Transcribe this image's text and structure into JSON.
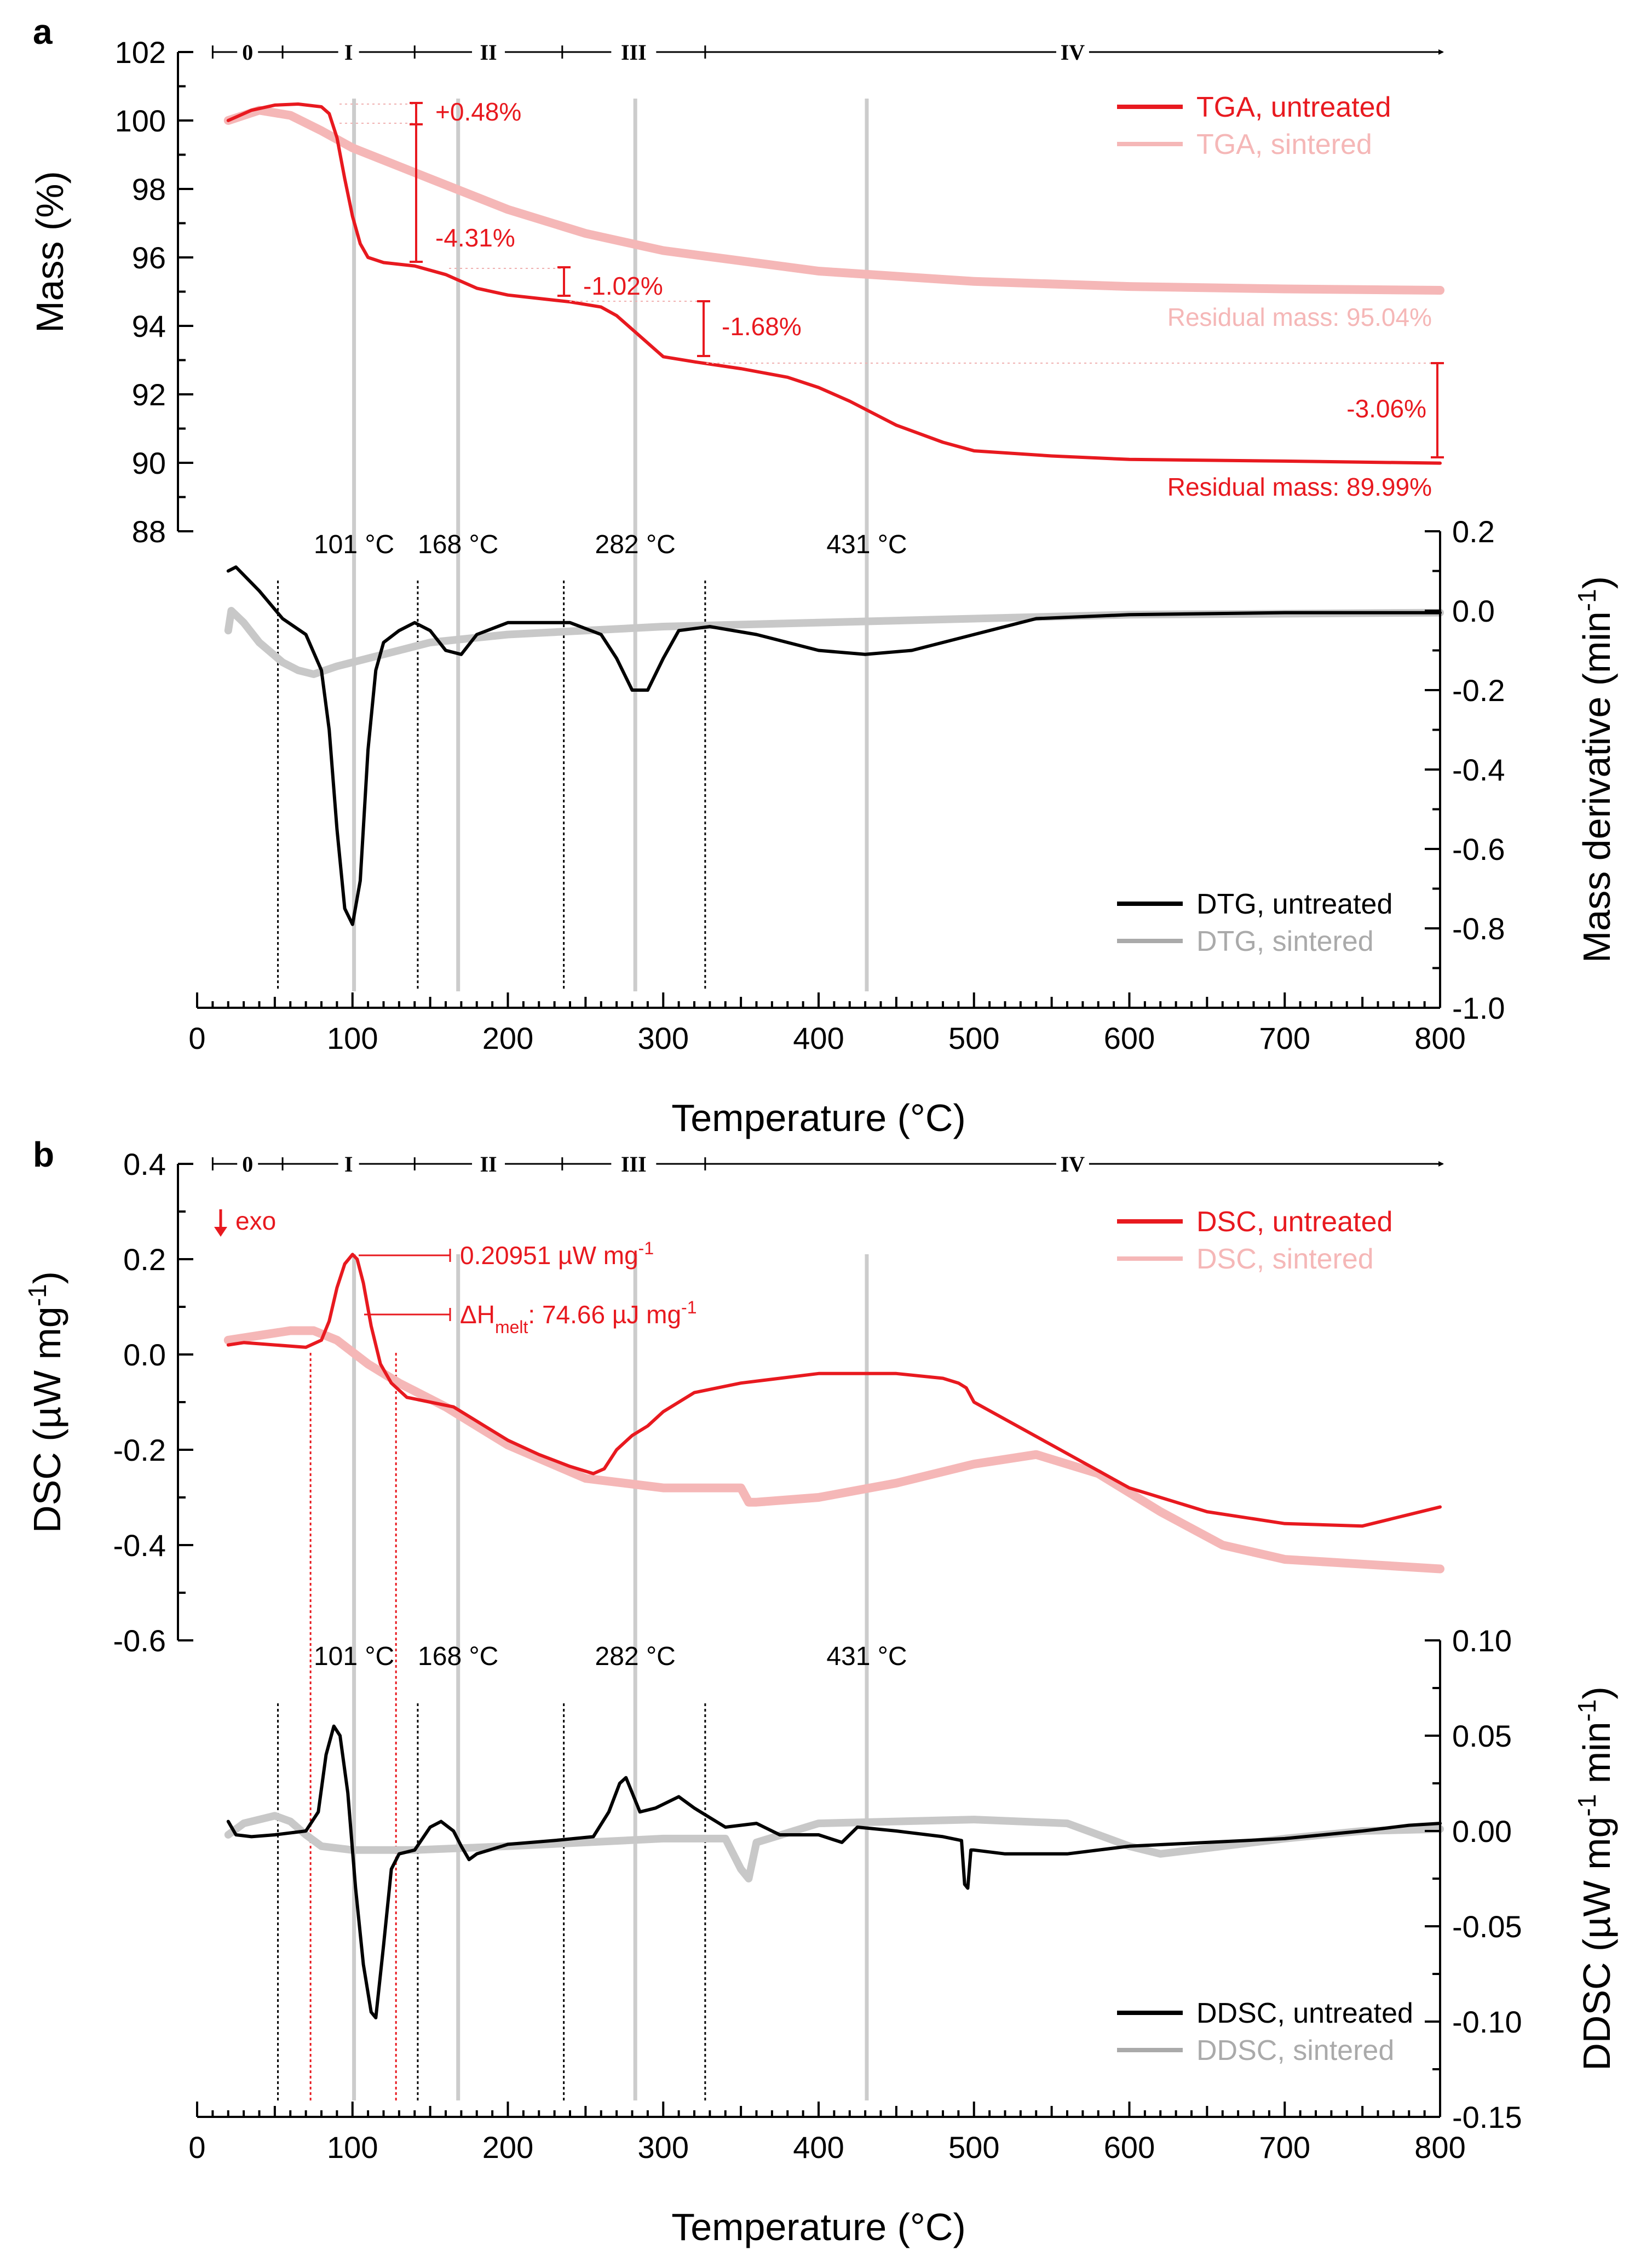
{
  "colors": {
    "untreated_red": "#e8191f",
    "sintered_pink": "#f5b7b7",
    "untreated_black": "#000000",
    "sintered_gray": "#c8c8c8",
    "guide_gray": "#cccccc"
  },
  "stages": [
    "0",
    "I",
    "II",
    "III",
    "IV"
  ],
  "stage_bounds": [
    10,
    55,
    140,
    235,
    327,
    800
  ],
  "guide_temps": [
    101,
    168,
    282,
    431
  ],
  "guide_labels": [
    "101 °C",
    "168 °C",
    "282 °C",
    "431 °C"
  ],
  "panel_a": {
    "label": "a",
    "tga_axis": {
      "ylabel": "Mass (%)",
      "ylim": [
        88,
        102
      ],
      "ticks": [
        "88",
        "90",
        "92",
        "94",
        "96",
        "98",
        "100",
        "102"
      ]
    },
    "dtg_axis": {
      "ylabel_main": "Mass derivative (min",
      "ylabel_sup": "-1",
      "ylabel_end": ")",
      "ylim": [
        -1.0,
        0.2
      ],
      "ticks": [
        "-1.0",
        "-0.8",
        "-0.6",
        "-0.4",
        "-0.2",
        "0.0",
        "0.2"
      ]
    },
    "xaxis": {
      "xlabel": "Temperature (°C)",
      "xlim": [
        0,
        800
      ],
      "ticks": [
        "0",
        "100",
        "200",
        "300",
        "400",
        "500",
        "600",
        "700",
        "800"
      ]
    },
    "legend_top": [
      "TGA, untreated",
      "TGA, sintered"
    ],
    "legend_bottom": [
      "DTG, untreated",
      "DTG, sintered"
    ],
    "annotations": {
      "step0": "+0.48%",
      "step1": "-4.31%",
      "step2": "-1.02%",
      "step3": "-1.68%",
      "step4": "-3.06%",
      "residual_sintered": "Residual mass: 95.04%",
      "residual_untreated": "Residual mass: 89.99%"
    },
    "dashed_temps": [
      52,
      142,
      236,
      327
    ]
  },
  "panel_b": {
    "label": "b",
    "dsc_axis": {
      "ylabel_main": "DSC (µW mg",
      "ylabel_sup": "-1",
      "ylabel_end": ")",
      "ylim": [
        -0.6,
        0.4
      ],
      "ticks": [
        "-0.6",
        "-0.4",
        "-0.2",
        "0.0",
        "0.2",
        "0.4"
      ]
    },
    "ddsc_axis": {
      "ylabel_main": "DDSC (µW mg",
      "ylabel_sup1": "-1",
      "ylabel_mid": " min",
      "ylabel_sup2": "-1",
      "ylabel_end": ")",
      "ylim": [
        -0.15,
        0.1
      ],
      "ticks": [
        "-0.15",
        "-0.10",
        "-0.05",
        "0.00",
        "0.05",
        "0.10"
      ]
    },
    "xaxis": {
      "xlabel": "Temperature (°C)",
      "xlim": [
        0,
        800
      ],
      "ticks": [
        "0",
        "100",
        "200",
        "300",
        "400",
        "500",
        "600",
        "700",
        "800"
      ]
    },
    "legend_top": [
      "DSC, untreated",
      "DSC, sintered"
    ],
    "legend_bottom": [
      "DDSC, untreated",
      "DDSC, sintered"
    ],
    "annotations": {
      "exo": "exo",
      "peak_value": "0.20951 µW mg",
      "peak_sup": "-1",
      "melt_prefix": "ΔH",
      "melt_sub": "melt",
      "melt_value": ": 74.66 µJ mg",
      "melt_sup": "-1"
    },
    "dashed_temps_black": [
      52,
      142,
      236,
      327
    ],
    "dashed_temps_red": [
      73,
      128
    ]
  },
  "chart_data": [
    {
      "type": "line",
      "xlabel": "Temperature (°C)",
      "ylabel": "Mass (%)",
      "xlim": [
        0,
        800
      ],
      "ylim": [
        88,
        102
      ],
      "legend": "top-right",
      "series": [
        {
          "name": "TGA, untreated",
          "x": [
            20,
            35,
            50,
            65,
            80,
            85,
            90,
            95,
            100,
            105,
            110,
            120,
            140,
            160,
            180,
            200,
            240,
            260,
            270,
            280,
            290,
            300,
            320,
            350,
            380,
            400,
            420,
            450,
            480,
            500,
            550,
            600,
            700,
            800
          ],
          "y": [
            100.0,
            100.3,
            100.45,
            100.48,
            100.4,
            100.2,
            99.5,
            98.3,
            97.2,
            96.4,
            96.0,
            95.85,
            95.75,
            95.5,
            95.1,
            94.9,
            94.7,
            94.55,
            94.3,
            93.9,
            93.5,
            93.1,
            92.95,
            92.75,
            92.5,
            92.2,
            91.8,
            91.1,
            90.6,
            90.35,
            90.2,
            90.1,
            90.05,
            89.99
          ]
        },
        {
          "name": "TGA, sintered",
          "x": [
            20,
            40,
            60,
            80,
            100,
            150,
            200,
            250,
            300,
            400,
            500,
            600,
            700,
            800
          ],
          "y": [
            100.0,
            100.3,
            100.15,
            99.7,
            99.2,
            98.3,
            97.4,
            96.7,
            96.2,
            95.6,
            95.3,
            95.15,
            95.08,
            95.04
          ]
        }
      ]
    },
    {
      "type": "line",
      "xlabel": "Temperature (°C)",
      "ylabel": "Mass derivative (min-1)",
      "xlim": [
        0,
        800
      ],
      "ylim": [
        -1.0,
        0.2
      ],
      "legend": "bottom-right",
      "series": [
        {
          "name": "DTG, untreated",
          "x": [
            20,
            25,
            40,
            55,
            70,
            80,
            85,
            90,
            95,
            100,
            105,
            110,
            115,
            120,
            130,
            140,
            150,
            160,
            170,
            180,
            200,
            240,
            260,
            270,
            280,
            290,
            300,
            310,
            330,
            360,
            400,
            430,
            460,
            500,
            540,
            600,
            700,
            800
          ],
          "y": [
            0.1,
            0.11,
            0.05,
            -0.02,
            -0.06,
            -0.15,
            -0.3,
            -0.55,
            -0.75,
            -0.79,
            -0.68,
            -0.35,
            -0.15,
            -0.08,
            -0.05,
            -0.03,
            -0.05,
            -0.1,
            -0.11,
            -0.06,
            -0.03,
            -0.03,
            -0.06,
            -0.12,
            -0.2,
            -0.2,
            -0.12,
            -0.05,
            -0.04,
            -0.06,
            -0.1,
            -0.11,
            -0.1,
            -0.06,
            -0.02,
            -0.01,
            -0.005,
            -0.005
          ]
        },
        {
          "name": "DTG, sintered",
          "x": [
            20,
            22,
            30,
            40,
            55,
            65,
            75,
            90,
            110,
            130,
            150,
            200,
            250,
            300,
            400,
            500,
            600,
            800
          ],
          "y": [
            -0.05,
            0.0,
            -0.03,
            -0.08,
            -0.13,
            -0.15,
            -0.16,
            -0.14,
            -0.12,
            -0.1,
            -0.08,
            -0.06,
            -0.05,
            -0.04,
            -0.03,
            -0.02,
            -0.01,
            -0.005
          ]
        }
      ]
    },
    {
      "type": "line",
      "xlabel": "Temperature (°C)",
      "ylabel": "DSC (µW mg-1)",
      "xlim": [
        0,
        800
      ],
      "ylim": [
        -0.6,
        0.4
      ],
      "legend": "top-right",
      "series": [
        {
          "name": "DSC, untreated",
          "x": [
            20,
            30,
            50,
            70,
            80,
            85,
            90,
            95,
            100,
            103,
            107,
            112,
            118,
            125,
            135,
            150,
            165,
            180,
            200,
            220,
            240,
            255,
            262,
            270,
            280,
            290,
            300,
            320,
            350,
            400,
            450,
            480,
            490,
            495,
            500,
            550,
            600,
            650,
            700,
            750,
            800
          ],
          "y": [
            0.02,
            0.025,
            0.02,
            0.015,
            0.03,
            0.07,
            0.14,
            0.19,
            0.21,
            0.2,
            0.15,
            0.06,
            -0.02,
            -0.06,
            -0.09,
            -0.1,
            -0.11,
            -0.14,
            -0.18,
            -0.21,
            -0.235,
            -0.25,
            -0.24,
            -0.2,
            -0.17,
            -0.15,
            -0.12,
            -0.08,
            -0.06,
            -0.04,
            -0.04,
            -0.05,
            -0.06,
            -0.07,
            -0.1,
            -0.19,
            -0.28,
            -0.33,
            -0.355,
            -0.36,
            -0.32
          ]
        },
        {
          "name": "DSC, sintered",
          "x": [
            20,
            40,
            60,
            75,
            90,
            110,
            130,
            160,
            200,
            250,
            300,
            350,
            355,
            360,
            400,
            450,
            500,
            540,
            580,
            620,
            660,
            700,
            750,
            800
          ],
          "y": [
            0.03,
            0.04,
            0.05,
            0.05,
            0.03,
            -0.02,
            -0.06,
            -0.11,
            -0.19,
            -0.26,
            -0.28,
            -0.28,
            -0.31,
            -0.31,
            -0.3,
            -0.27,
            -0.23,
            -0.21,
            -0.25,
            -0.33,
            -0.4,
            -0.43,
            -0.44,
            -0.45
          ]
        }
      ]
    },
    {
      "type": "line",
      "xlabel": "Temperature (°C)",
      "ylabel": "DDSC (µW mg-1 min-1)",
      "xlim": [
        0,
        800
      ],
      "ylim": [
        -0.15,
        0.1
      ],
      "legend": "bottom-right",
      "series": [
        {
          "name": "DDSC, untreated",
          "x": [
            20,
            25,
            35,
            50,
            70,
            78,
            83,
            88,
            92,
            97,
            102,
            107,
            112,
            115,
            120,
            125,
            130,
            140,
            150,
            157,
            165,
            170,
            175,
            180,
            200,
            230,
            255,
            265,
            272,
            276,
            280,
            285,
            295,
            310,
            320,
            340,
            360,
            375,
            400,
            415,
            425,
            450,
            480,
            492,
            494,
            496,
            498,
            500,
            520,
            560,
            600,
            650,
            700,
            750,
            780,
            800
          ],
          "y": [
            0.005,
            -0.002,
            -0.003,
            -0.002,
            0.0,
            0.01,
            0.04,
            0.055,
            0.05,
            0.02,
            -0.03,
            -0.07,
            -0.095,
            -0.098,
            -0.06,
            -0.02,
            -0.012,
            -0.01,
            0.002,
            0.005,
            0.0,
            -0.008,
            -0.015,
            -0.012,
            -0.007,
            -0.005,
            -0.003,
            0.01,
            0.025,
            0.028,
            0.02,
            0.01,
            0.012,
            0.018,
            0.012,
            0.002,
            0.004,
            -0.002,
            -0.002,
            -0.006,
            0.002,
            0.0,
            -0.003,
            -0.005,
            -0.028,
            -0.03,
            -0.01,
            -0.01,
            -0.012,
            -0.012,
            -0.008,
            -0.006,
            -0.004,
            0.0,
            0.003,
            0.004
          ]
        },
        {
          "name": "DDSC, sintered",
          "x": [
            20,
            30,
            50,
            60,
            70,
            80,
            100,
            140,
            200,
            250,
            300,
            340,
            350,
            355,
            360,
            400,
            500,
            560,
            600,
            620,
            660,
            700,
            750,
            800
          ],
          "y": [
            -0.002,
            0.004,
            0.008,
            0.005,
            -0.002,
            -0.008,
            -0.01,
            -0.01,
            -0.008,
            -0.006,
            -0.004,
            -0.004,
            -0.02,
            -0.025,
            -0.006,
            0.004,
            0.006,
            0.004,
            -0.008,
            -0.012,
            -0.008,
            -0.004,
            0.0,
            0.001
          ]
        }
      ]
    }
  ]
}
